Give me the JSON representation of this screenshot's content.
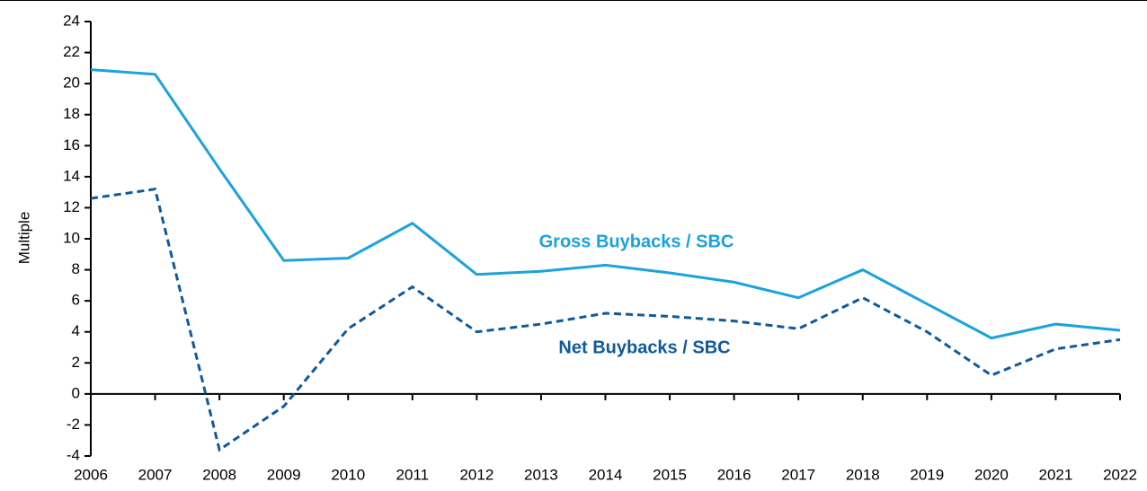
{
  "chart_data": {
    "type": "line",
    "y_label": "Multiple",
    "categories": [
      "2006",
      "2007",
      "2008",
      "2009",
      "2010",
      "2011",
      "2012",
      "2013",
      "2014",
      "2015",
      "2016",
      "2017",
      "2018",
      "2019",
      "2020",
      "2021",
      "2022"
    ],
    "series": [
      {
        "name": "Gross Buybacks / SBC",
        "color": "#1ba3dd",
        "dash": false,
        "values": [
          20.9,
          20.6,
          14.5,
          8.6,
          8.75,
          11.0,
          7.7,
          7.9,
          8.3,
          7.8,
          7.2,
          6.2,
          8.0,
          5.8,
          3.6,
          4.5,
          4.1
        ]
      },
      {
        "name": "Net Buybacks / SBC",
        "color": "#0e5a9c",
        "dash": true,
        "values": [
          12.6,
          13.2,
          -3.6,
          -0.8,
          4.2,
          6.9,
          4.0,
          4.5,
          5.2,
          5.0,
          4.7,
          4.2,
          6.2,
          4.0,
          1.2,
          2.9,
          3.5
        ]
      }
    ],
    "ylim": [
      -4,
      24
    ],
    "yticks": [
      -4,
      -2,
      0,
      2,
      4,
      6,
      8,
      10,
      12,
      14,
      16,
      18,
      20,
      22,
      24
    ]
  }
}
